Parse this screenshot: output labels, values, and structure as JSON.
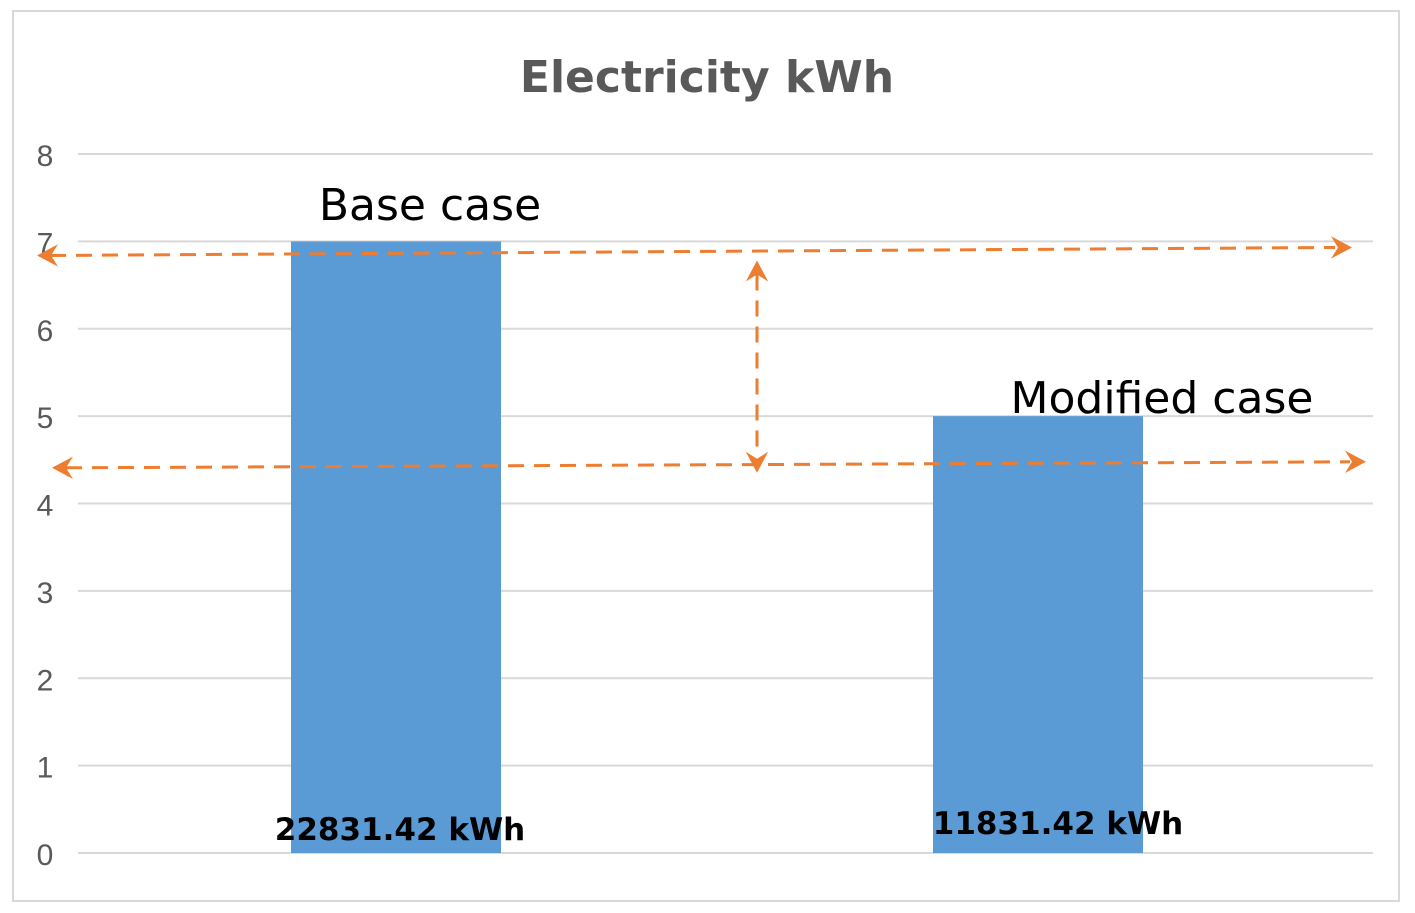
{
  "chart_data": {
    "type": "bar",
    "title": "Electricity kWh",
    "categories": [
      "Base case",
      "Modified case"
    ],
    "values": [
      7,
      5
    ],
    "value_labels": [
      "22831.42 kWh",
      "11831.42 kWh"
    ],
    "ylim": [
      0,
      8
    ],
    "yticks": [
      0,
      1,
      2,
      3,
      4,
      5,
      6,
      7,
      8
    ],
    "grid": true,
    "bar_color": "#5b9bd5",
    "annotation_color": "#ed7d31",
    "reference_lines": [
      6.85,
      4.42
    ]
  }
}
